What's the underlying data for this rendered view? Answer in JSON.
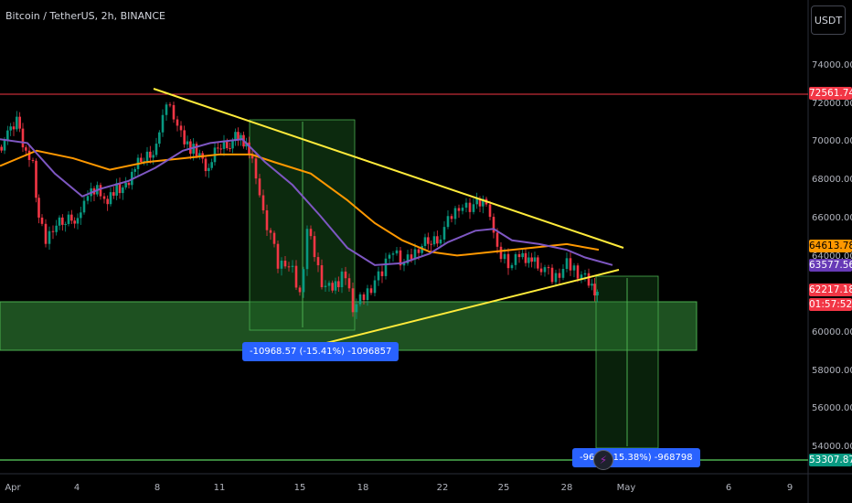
{
  "header": {
    "symbol": "Bitcoin / TetherUS, 2h, BINANCE",
    "currency": "USDT"
  },
  "chart_data": {
    "type": "line",
    "yaxis": {
      "ticks": [
        "74000.00",
        "72000.00",
        "70000.00",
        "68000.00",
        "66000.00",
        "64000.00",
        "62000.00",
        "60000.00",
        "58000.00",
        "56000.00",
        "54000.00"
      ]
    },
    "xaxis": {
      "ticks": [
        "Apr",
        "4",
        "8",
        "11",
        "15",
        "18",
        "22",
        "25",
        "28",
        "May",
        "6",
        "9"
      ]
    },
    "price_labels": [
      {
        "name": "resistance",
        "value": "72561.74",
        "bg": "#f23645",
        "fg": "#ffffff"
      },
      {
        "name": "ma-orange",
        "value": "64613.78",
        "bg": "#ff9800",
        "fg": "#000000"
      },
      {
        "name": "ma-purple",
        "value": "63577.56",
        "bg": "#673ab7",
        "fg": "#ffffff"
      },
      {
        "name": "last-price",
        "value": "62217.18",
        "bg": "#f23645",
        "fg": "#ffffff"
      },
      {
        "name": "countdown",
        "value": "01:57:52",
        "bg": "#f23645",
        "fg": "#ffffff"
      },
      {
        "name": "support",
        "value": "53307.87",
        "bg": "#089981",
        "fg": "#ffffff"
      }
    ],
    "measure_left": "-10968.57 (-15.41%) -1096857",
    "measure_right": "-96  3 (-15.38%) -968798",
    "colors": {
      "up": "#089981",
      "down": "#f23645",
      "ma_orange": "#ff9800",
      "ma_purple": "#7e57c2",
      "trend": "#ffeb3b",
      "zone": "#2e7d32"
    }
  }
}
